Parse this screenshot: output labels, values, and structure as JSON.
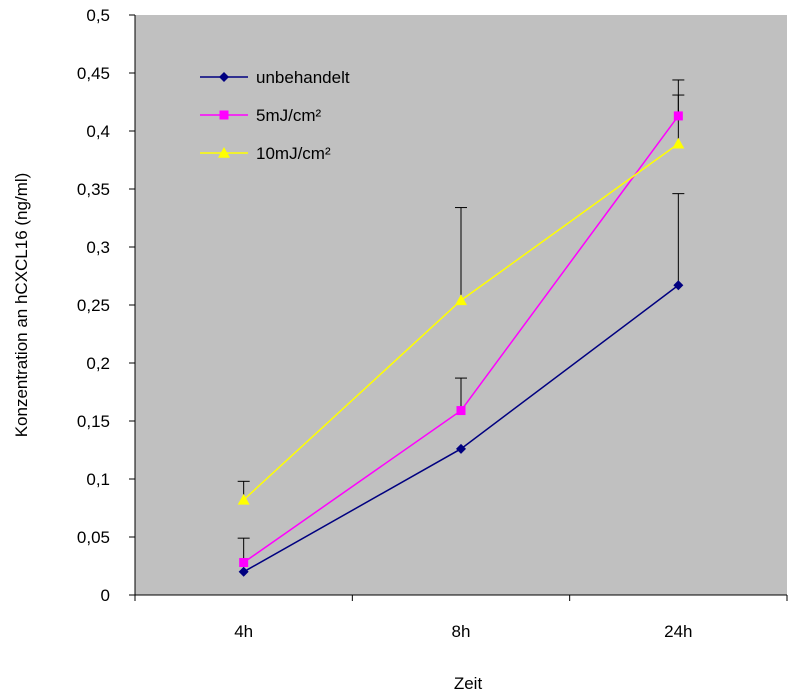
{
  "chart_data": {
    "type": "line",
    "categories": [
      "4h",
      "8h",
      "24h"
    ],
    "xlabel": "Zeit",
    "ylabel": "Konzentration an hCXCL16 (ng/ml)",
    "ylim": [
      0,
      0.5
    ],
    "yticks": [
      "0",
      "0,05",
      "0,1",
      "0,15",
      "0,2",
      "0,25",
      "0,3",
      "0,35",
      "0,4",
      "0,45",
      "0,5"
    ],
    "plot_background": "#c0c0c0",
    "legend_position": "top-left inside plot",
    "series": [
      {
        "name": "unbehandelt",
        "color": "#000080",
        "marker": "diamond",
        "values": [
          0.02,
          0.126,
          0.267
        ],
        "error_plus": [
          0.0,
          0.0,
          0.079
        ]
      },
      {
        "name": "5mJ/cm²",
        "color": "#ff00ff",
        "marker": "square",
        "values": [
          0.028,
          0.159,
          0.413
        ],
        "error_plus": [
          0.021,
          0.028,
          0.018
        ]
      },
      {
        "name": "10mJ/cm²",
        "color": "#ffff00",
        "marker": "triangle",
        "values": [
          0.082,
          0.254,
          0.389
        ],
        "error_plus": [
          0.016,
          0.08,
          0.055
        ]
      }
    ]
  }
}
